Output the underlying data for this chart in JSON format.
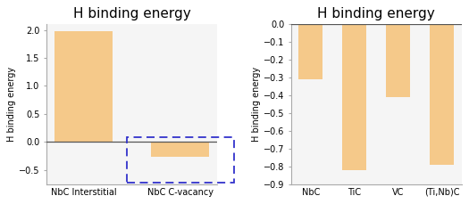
{
  "left": {
    "title": "H binding energy",
    "ylabel": "H binding energy",
    "categories": [
      "NbC Interstitial",
      "NbC C-vacancy"
    ],
    "values": [
      1.97,
      -0.27
    ],
    "ylim": [
      -0.75,
      2.1
    ],
    "yticks": [
      -0.5,
      0.0,
      0.5,
      1.0,
      1.5,
      2.0
    ],
    "bar_color": "#f5c98a",
    "bar_width": 0.6
  },
  "right": {
    "title": "H binding energy",
    "ylabel": "H binding energy",
    "categories": [
      "NbC",
      "TiC",
      "VC",
      "(Ti,Nb)C"
    ],
    "values": [
      -0.31,
      -0.82,
      -0.41,
      -0.79
    ],
    "ylim": [
      -0.9,
      0.0
    ],
    "yticks": [
      0.0,
      -0.1,
      -0.2,
      -0.3,
      -0.4,
      -0.5,
      -0.6,
      -0.7,
      -0.8,
      -0.9
    ],
    "bar_color": "#f5c98a",
    "bar_width": 0.55
  },
  "background_color": "#ffffff",
  "plot_bg_color": "#f5f5f5",
  "axis_line_color": "#aaaaaa",
  "title_fontsize": 11,
  "label_fontsize": 7,
  "tick_fontsize": 7
}
